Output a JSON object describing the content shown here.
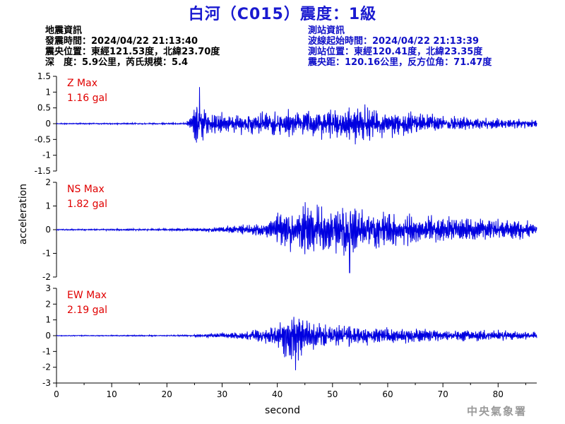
{
  "title": "白河（C015）震度：1級",
  "earthquake_info": {
    "heading": "地震資訊",
    "origin_time": "發震時間：2024/04/22 21:13:40",
    "epicenter": "震央位置：東經121.53度，北緯23.70度",
    "depth_magnitude": "深　度：5.9公里，芮氏規模：5.4"
  },
  "station_info": {
    "heading": "測站資訊",
    "wave_start_time": "波線起始時間：2024/04/22 21:13:39",
    "station_location": "測站位置：東經120.41度，北緯23.35度",
    "distance_azimuth": "震央距：120.16公里，反方位角：71.47度"
  },
  "watermark": "中央氣象署",
  "colors": {
    "trace": "#0000e0",
    "max_label": "#e00000",
    "title": "#1a1ad0",
    "station_text": "#1010c8"
  },
  "chart_data": {
    "type": "line",
    "xlabel": "second",
    "ylabel": "acceleration",
    "xlim": [
      0,
      87
    ],
    "xticks": [
      0,
      10,
      20,
      30,
      40,
      50,
      60,
      70,
      80
    ],
    "panels": [
      {
        "name": "Z",
        "max_label": "Z Max",
        "max_value": "1.16 gal",
        "ylim": [
          -1.5,
          1.5
        ],
        "yticks": [
          -1.5,
          -1,
          -0.5,
          0,
          0.5,
          1,
          1.5
        ],
        "yticklabels": [
          "-1.5",
          "-1",
          "-0.5",
          "0",
          "0.5",
          "1",
          "1.5"
        ],
        "envelope": [
          [
            0,
            0.02
          ],
          [
            23.5,
            0.03
          ],
          [
            24.5,
            0.35
          ],
          [
            25.5,
            1.05
          ],
          [
            27,
            0.45
          ],
          [
            32,
            0.32
          ],
          [
            38,
            0.42
          ],
          [
            45,
            0.5
          ],
          [
            50,
            0.55
          ],
          [
            56,
            0.65
          ],
          [
            60,
            0.45
          ],
          [
            65,
            0.4
          ],
          [
            70,
            0.28
          ],
          [
            80,
            0.2
          ],
          [
            87,
            0.15
          ]
        ],
        "peak": [
          25.9,
          1.16
        ]
      },
      {
        "name": "NS",
        "max_label": "NS Max",
        "max_value": "1.82 gal",
        "ylim": [
          -2,
          2
        ],
        "yticks": [
          -2,
          -1,
          0,
          1,
          2
        ],
        "yticklabels": [
          "-2",
          "-1",
          "0",
          "1",
          "2"
        ],
        "envelope": [
          [
            0,
            0.03
          ],
          [
            25,
            0.06
          ],
          [
            28,
            0.12
          ],
          [
            32,
            0.2
          ],
          [
            38,
            0.35
          ],
          [
            41,
            1.0
          ],
          [
            45,
            1.3
          ],
          [
            50,
            1.1
          ],
          [
            53,
            1.5
          ],
          [
            57,
            1.0
          ],
          [
            62,
            0.8
          ],
          [
            68,
            0.65
          ],
          [
            75,
            0.55
          ],
          [
            82,
            0.5
          ],
          [
            87,
            0.4
          ]
        ],
        "peak": [
          53.1,
          -1.82
        ]
      },
      {
        "name": "EW",
        "max_label": "EW Max",
        "max_value": "2.19 gal",
        "ylim": [
          -3,
          3
        ],
        "yticks": [
          -3,
          -2,
          -1,
          0,
          1,
          2,
          3
        ],
        "yticklabels": [
          "-3",
          "-2",
          "-1",
          "0",
          "1",
          "2",
          "3"
        ],
        "envelope": [
          [
            0,
            0.03
          ],
          [
            24,
            0.05
          ],
          [
            28,
            0.15
          ],
          [
            35,
            0.35
          ],
          [
            40,
            0.7
          ],
          [
            42,
            1.7
          ],
          [
            45,
            1.4
          ],
          [
            48,
            0.9
          ],
          [
            52,
            0.8
          ],
          [
            58,
            0.65
          ],
          [
            65,
            0.55
          ],
          [
            72,
            0.45
          ],
          [
            80,
            0.35
          ],
          [
            87,
            0.3
          ]
        ],
        "peak": [
          43.3,
          -2.19
        ]
      }
    ]
  }
}
